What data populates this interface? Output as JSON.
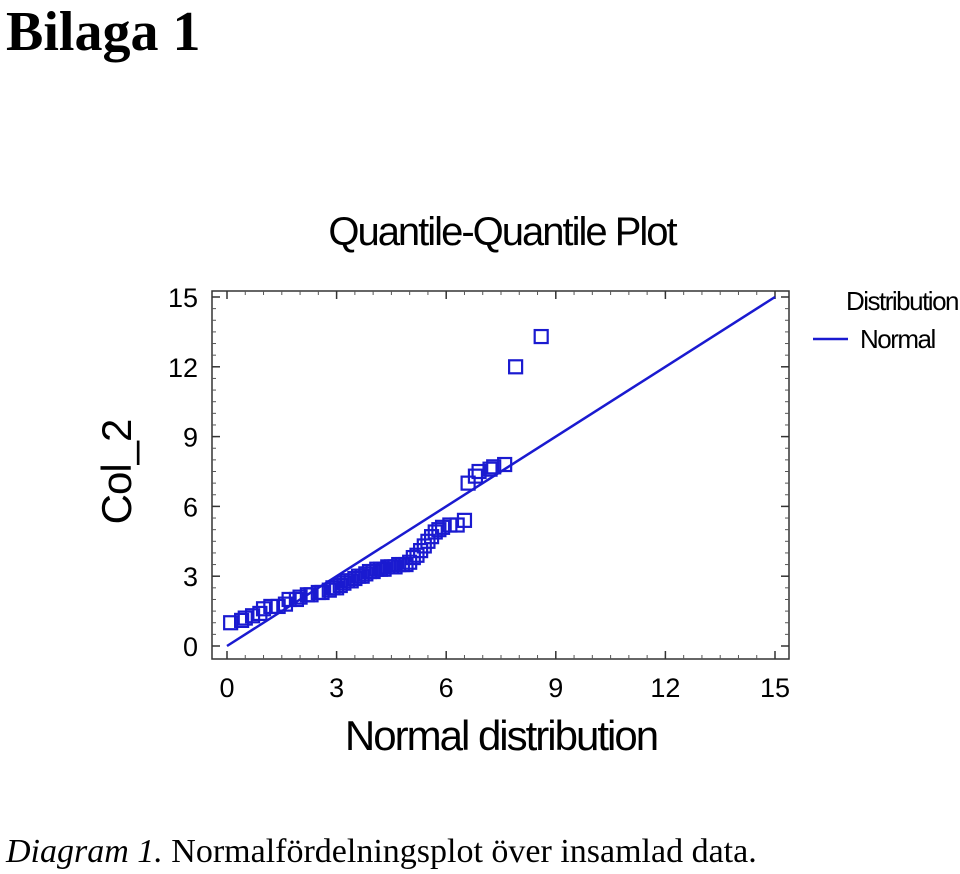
{
  "document": {
    "heading": "Bilaga 1",
    "caption_label": "Diagram 1.",
    "caption_text": " Normalfördelningsplot över insamlad data."
  },
  "colors": {
    "series": "#1a1ad0",
    "axis": "#333333",
    "text": "#000000"
  },
  "chart_data": {
    "type": "scatter",
    "title": "Quantile-Quantile Plot",
    "xlabel": "Normal distribution",
    "ylabel": "Col_2",
    "xlim": [
      0,
      15
    ],
    "ylim": [
      0,
      15
    ],
    "xticks": [
      0,
      3,
      6,
      9,
      12,
      15
    ],
    "yticks": [
      0,
      3,
      6,
      9,
      12,
      15
    ],
    "grid": false,
    "legend": {
      "title": "Distribution",
      "entries": [
        "Normal"
      ],
      "placement": "top-right, outside"
    },
    "reference_line": {
      "name": "Normal",
      "points": [
        [
          0,
          0
        ],
        [
          15,
          15
        ]
      ]
    },
    "series": [
      {
        "marker": "square",
        "points": [
          [
            0.1,
            1.0
          ],
          [
            0.4,
            1.1
          ],
          [
            0.5,
            1.2
          ],
          [
            0.7,
            1.3
          ],
          [
            0.9,
            1.4
          ],
          [
            1.0,
            1.6
          ],
          [
            1.2,
            1.7
          ],
          [
            1.4,
            1.7
          ],
          [
            1.6,
            1.8
          ],
          [
            1.7,
            2.0
          ],
          [
            1.9,
            2.0
          ],
          [
            2.0,
            2.1
          ],
          [
            2.2,
            2.2
          ],
          [
            2.3,
            2.2
          ],
          [
            2.5,
            2.3
          ],
          [
            2.6,
            2.3
          ],
          [
            2.8,
            2.4
          ],
          [
            2.9,
            2.5
          ],
          [
            3.0,
            2.5
          ],
          [
            3.1,
            2.6
          ],
          [
            3.2,
            2.7
          ],
          [
            3.3,
            2.8
          ],
          [
            3.4,
            2.8
          ],
          [
            3.5,
            2.9
          ],
          [
            3.6,
            3.0
          ],
          [
            3.7,
            3.0
          ],
          [
            3.8,
            3.1
          ],
          [
            3.9,
            3.2
          ],
          [
            4.0,
            3.2
          ],
          [
            4.1,
            3.3
          ],
          [
            4.2,
            3.3
          ],
          [
            4.3,
            3.3
          ],
          [
            4.4,
            3.4
          ],
          [
            4.5,
            3.4
          ],
          [
            4.6,
            3.4
          ],
          [
            4.7,
            3.5
          ],
          [
            4.8,
            3.5
          ],
          [
            4.9,
            3.5
          ],
          [
            5.0,
            3.6
          ],
          [
            5.1,
            3.8
          ],
          [
            5.2,
            3.9
          ],
          [
            5.3,
            4.1
          ],
          [
            5.4,
            4.3
          ],
          [
            5.5,
            4.5
          ],
          [
            5.6,
            4.7
          ],
          [
            5.7,
            4.9
          ],
          [
            5.8,
            5.0
          ],
          [
            5.9,
            5.1
          ],
          [
            6.1,
            5.2
          ],
          [
            6.3,
            5.2
          ],
          [
            6.5,
            5.4
          ],
          [
            6.6,
            7.0
          ],
          [
            6.8,
            7.3
          ],
          [
            6.9,
            7.5
          ],
          [
            7.2,
            7.6
          ],
          [
            7.3,
            7.7
          ],
          [
            7.6,
            7.8
          ],
          [
            7.9,
            12.0
          ],
          [
            8.6,
            13.3
          ]
        ]
      }
    ]
  }
}
